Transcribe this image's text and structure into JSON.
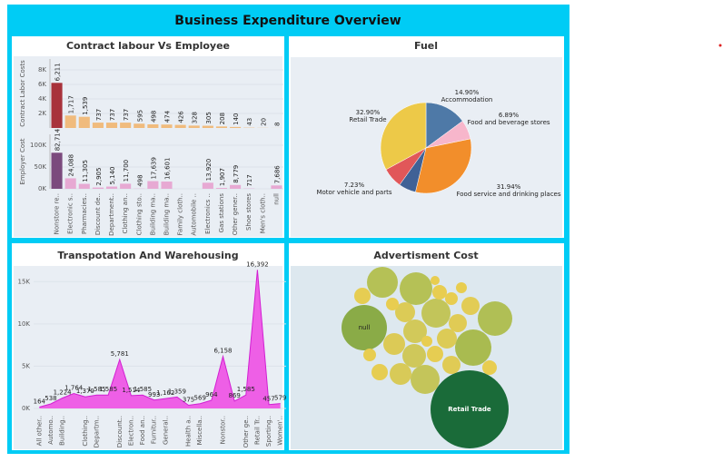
{
  "title": "Business Expenditure Overview",
  "chart_data": [
    {
      "type": "bar",
      "title": "Contract labour Vs Employee",
      "categories": [
        "Nonstore re..",
        "Electronic s..",
        "Pharmacies..",
        "Discount de..",
        "Department..",
        "Clothing an..",
        "Clothing sto..",
        "Building ma..",
        "Building ma..",
        "Family cloth..",
        "Automobile ..",
        "Electronics ..",
        "Gas stations",
        "Other gener..",
        "Shoe stores",
        "Men's cloth..",
        "null"
      ],
      "series": [
        {
          "name": "Contract Labor Costs",
          "color": "#f0bb7d",
          "highlight_color": "#a8323b",
          "values": [
            6211,
            1717,
            1539,
            737,
            737,
            737,
            595,
            498,
            474,
            426,
            328,
            305,
            208,
            140,
            43,
            20,
            8
          ],
          "value_labels": [
            "6,211",
            "1,717",
            "1,539",
            "737",
            "737",
            "737",
            "595",
            "498",
            "474",
            "426",
            "328",
            "305",
            "208",
            "140",
            "43",
            "20",
            "8"
          ],
          "ylim": [
            0,
            9500
          ],
          "yticks": [
            {
              "value": 2000,
              "label": "2K"
            },
            {
              "value": 4000,
              "label": "4K"
            },
            {
              "value": 6000,
              "label": "6K"
            },
            {
              "value": 8000,
              "label": "8K"
            }
          ]
        },
        {
          "name": "Employer Cost",
          "color": "#e7a9d3",
          "highlight_color": "#7b4a7d",
          "values": [
            82714,
            24088,
            11305,
            2905,
            5140,
            11700,
            498,
            17639,
            16601,
            null,
            null,
            13920,
            1907,
            8779,
            717,
            null,
            7686
          ],
          "value_labels": [
            "82,714",
            "24,088",
            "11,305",
            "2,905",
            "5,140",
            "11,700",
            "498",
            "17,639",
            "16,601",
            null,
            null,
            "13,920",
            "1,907",
            "8,779",
            "717",
            null,
            "7,686"
          ],
          "ylim": [
            0,
            125000
          ],
          "yticks": [
            {
              "value": 0,
              "label": "0K"
            },
            {
              "value": 50000,
              "label": "50K"
            },
            {
              "value": 100000,
              "label": "100K"
            }
          ]
        }
      ]
    },
    {
      "type": "pie",
      "title": "Fuel",
      "categories": [
        "Accommodation",
        "Food and beverage stores",
        "Food service and drinking places",
        null,
        "Motor vehicle and parts",
        "Retail Trade"
      ],
      "values": [
        14.9,
        6.89,
        31.94,
        6.14,
        7.23,
        32.9
      ],
      "value_labels": [
        "14.90%",
        "6.89%",
        "31.94%",
        null,
        "7.23%",
        "32.90%"
      ],
      "colors": [
        "#4e79a7",
        "#f7b6cb",
        "#f28e2b",
        "#3f6196",
        "#e15759",
        "#edc948"
      ]
    },
    {
      "type": "area",
      "title": "Transpotation And Warehousing",
      "categories": [
        "All other..",
        "Automo..",
        "Building..",
        null,
        "Clothing..",
        "Departm..",
        null,
        "Discount..",
        "Electron..",
        "Food an..",
        "Furnitur..",
        "General..",
        null,
        "Health a..",
        "Miscella..",
        null,
        "Nonstor..",
        null,
        "Other ge..",
        "Retail Tr..",
        "Sporting..",
        "Women'.."
      ],
      "values": [
        164,
        538,
        1224,
        1764,
        1370,
        1585,
        1585,
        5781,
        1514,
        1585,
        993,
        1162,
        1359,
        375,
        569,
        964,
        6158,
        869,
        1585,
        16392,
        457,
        579
      ],
      "value_labels": [
        "164",
        "538",
        "1,224",
        "1,764",
        "1,370",
        "1,585",
        "1,585",
        "5,781",
        "1,514",
        "1,585",
        "993",
        "1,162",
        "1,359",
        "375",
        "569",
        "964",
        "6,158",
        "869",
        "1,585",
        "16,392",
        "457",
        "579"
      ],
      "color": "#ee5fe6",
      "line_color": "#d21fd2",
      "ylim": [
        0,
        17500
      ],
      "yticks": [
        {
          "value": 0,
          "label": "0K"
        },
        {
          "value": 5000,
          "label": "5K"
        },
        {
          "value": 10000,
          "label": "10K"
        },
        {
          "value": 15000,
          "label": "15K"
        }
      ]
    },
    {
      "type": "bubble",
      "title": "Advertisment Cost",
      "categories": [
        "Retail Trade",
        "null",
        null,
        null,
        null,
        null,
        null,
        null,
        null,
        null,
        null,
        null,
        null,
        null,
        null,
        null,
        null,
        null,
        null,
        null,
        null,
        null,
        null,
        null,
        null,
        null,
        null,
        null
      ],
      "values": [
        1849,
        625,
        289,
        324,
        361,
        400,
        256,
        256,
        169,
        169,
        144,
        144,
        121,
        121,
        100,
        100,
        100,
        81,
        81,
        49,
        81,
        49,
        64,
        49,
        36,
        64,
        25,
        36
      ],
      "colors": [
        "#1a6b39",
        "#8aab47",
        "#b5c156",
        "#b5c156",
        "#b0bf55",
        "#a9bb50",
        "#c2c55a",
        "#c4c55a",
        "#cfc85a",
        "#d2c95a",
        "#d8ca58",
        "#dcca56",
        "#dccb56",
        "#dccb56",
        "#e0cb55",
        "#e0cb55",
        "#e2cc55",
        "#e6cd52",
        "#e6cd52",
        "#e8cd50",
        "#e6cd52",
        "#e8cd50",
        "#e8cd50",
        "#e8cd50",
        "#e8cd50",
        "#e8cd50",
        "#e8cd50",
        "#e8cd50"
      ]
    }
  ]
}
